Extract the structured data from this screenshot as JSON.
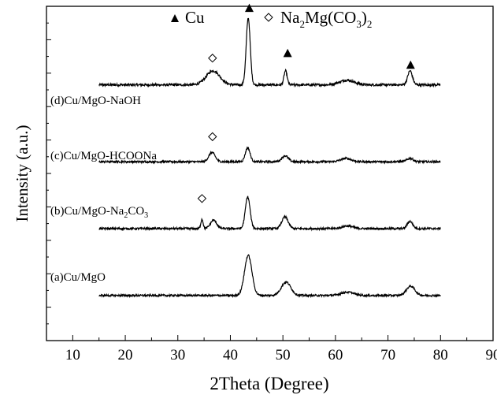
{
  "chart_data": {
    "type": "line",
    "title": "",
    "xlabel": "2Theta (Degree)",
    "ylabel": "Intensity (a.u.)",
    "xlim": [
      5,
      90
    ],
    "ylim": [
      0,
      10
    ],
    "x_ticks": [
      10,
      20,
      30,
      40,
      50,
      60,
      70,
      80,
      90
    ],
    "x_tick_labels": [
      "10",
      "20",
      "30",
      "40",
      "50",
      "60",
      "70",
      "80",
      "90"
    ],
    "y_tick_labels_shown": false,
    "grid": false,
    "legend": {
      "placement": "top-center",
      "entries": [
        {
          "marker": "filled-triangle",
          "label": "Cu"
        },
        {
          "marker": "open-diamond",
          "label_main": "Na",
          "sub1": "2",
          "label_mid": "Mg(CO",
          "sub2": "3",
          "label_end": ")",
          "sub3": "2"
        }
      ]
    },
    "series": [
      {
        "name": "(d)Cu/MgO-NaOH",
        "label_main": "(d)Cu/MgO-NaOH",
        "x_range": [
          15,
          80
        ],
        "baseline": 7.65,
        "noise": 0.035,
        "peaks": [
          {
            "x": 36.7,
            "height": 0.42,
            "width": 1.3
          },
          {
            "x": 43.4,
            "height": 2.0,
            "width": 0.38
          },
          {
            "x": 50.5,
            "height": 0.42,
            "width": 0.3
          },
          {
            "x": 62.2,
            "height": 0.14,
            "width": 1.4
          },
          {
            "x": 74.2,
            "height": 0.42,
            "width": 0.45
          }
        ],
        "markers": [
          {
            "type": "open-diamond",
            "x": 36.6,
            "y": 8.45
          },
          {
            "type": "filled-triangle",
            "x": 43.6,
            "y": 9.95
          },
          {
            "type": "filled-triangle",
            "x": 50.9,
            "y": 8.6
          },
          {
            "type": "filled-triangle",
            "x": 74.3,
            "y": 8.25
          }
        ]
      },
      {
        "name": "(c)Cu/MgO-HCOONa",
        "label_main": "(c)Cu/MgO-HCOONa",
        "x_range": [
          15,
          80
        ],
        "baseline": 5.35,
        "noise": 0.03,
        "peaks": [
          {
            "x": 36.5,
            "height": 0.28,
            "width": 0.6
          },
          {
            "x": 43.3,
            "height": 0.42,
            "width": 0.45
          },
          {
            "x": 50.4,
            "height": 0.18,
            "width": 0.6
          },
          {
            "x": 62.0,
            "height": 0.1,
            "width": 1.0
          },
          {
            "x": 74.2,
            "height": 0.1,
            "width": 0.6
          }
        ],
        "markers": [
          {
            "type": "open-diamond",
            "x": 36.6,
            "y": 6.1
          }
        ]
      },
      {
        "name": "(b)Cu/MgO-Na2CO3",
        "label_main": "(b)Cu/MgO-Na",
        "label_sub1": "2",
        "label_mid": "CO",
        "label_sub2": "3",
        "x_range": [
          15,
          80
        ],
        "baseline": 3.35,
        "noise": 0.03,
        "peaks": [
          {
            "x": 34.6,
            "height": 0.28,
            "width": 0.22
          },
          {
            "x": 36.8,
            "height": 0.25,
            "width": 0.6
          },
          {
            "x": 43.3,
            "height": 0.95,
            "width": 0.45
          },
          {
            "x": 50.4,
            "height": 0.35,
            "width": 0.6
          },
          {
            "x": 62.3,
            "height": 0.08,
            "width": 1.0
          },
          {
            "x": 74.2,
            "height": 0.22,
            "width": 0.5
          }
        ],
        "markers": [
          {
            "type": "open-diamond",
            "x": 34.6,
            "y": 4.25
          }
        ]
      },
      {
        "name": "(a)Cu/MgO",
        "label_main": "(a)Cu/MgO",
        "x_range": [
          15,
          80
        ],
        "baseline": 1.35,
        "noise": 0.028,
        "peaks": [
          {
            "x": 43.4,
            "height": 1.2,
            "width": 0.7
          },
          {
            "x": 50.6,
            "height": 0.4,
            "width": 0.9
          },
          {
            "x": 62.3,
            "height": 0.1,
            "width": 1.2
          },
          {
            "x": 74.3,
            "height": 0.28,
            "width": 0.8
          }
        ],
        "markers": []
      }
    ]
  }
}
